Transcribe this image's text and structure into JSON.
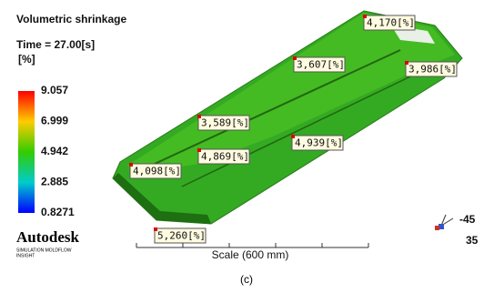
{
  "header": {
    "title": "Volumetric shrinkage",
    "time": "Time = 27.00[s]",
    "unit": "[%]"
  },
  "legend": {
    "ticks": [
      "9.057",
      "6.999",
      "4.942",
      "2.885",
      "0.8271"
    ]
  },
  "logo": {
    "name": "Autodesk",
    "sub1": "SIMULATION MOLDFLOW",
    "sub2": "INSIGHT"
  },
  "probes": [
    "4,170[%]",
    "3,607[%]",
    "3,986[%]",
    "3,589[%]",
    "4,939[%]",
    "4,869[%]",
    "4,098[%]",
    "5,260[%]"
  ],
  "scale": "Scale (600 mm)",
  "view": {
    "angle1": "-45",
    "angle2": "35"
  },
  "caption": "(c)"
}
